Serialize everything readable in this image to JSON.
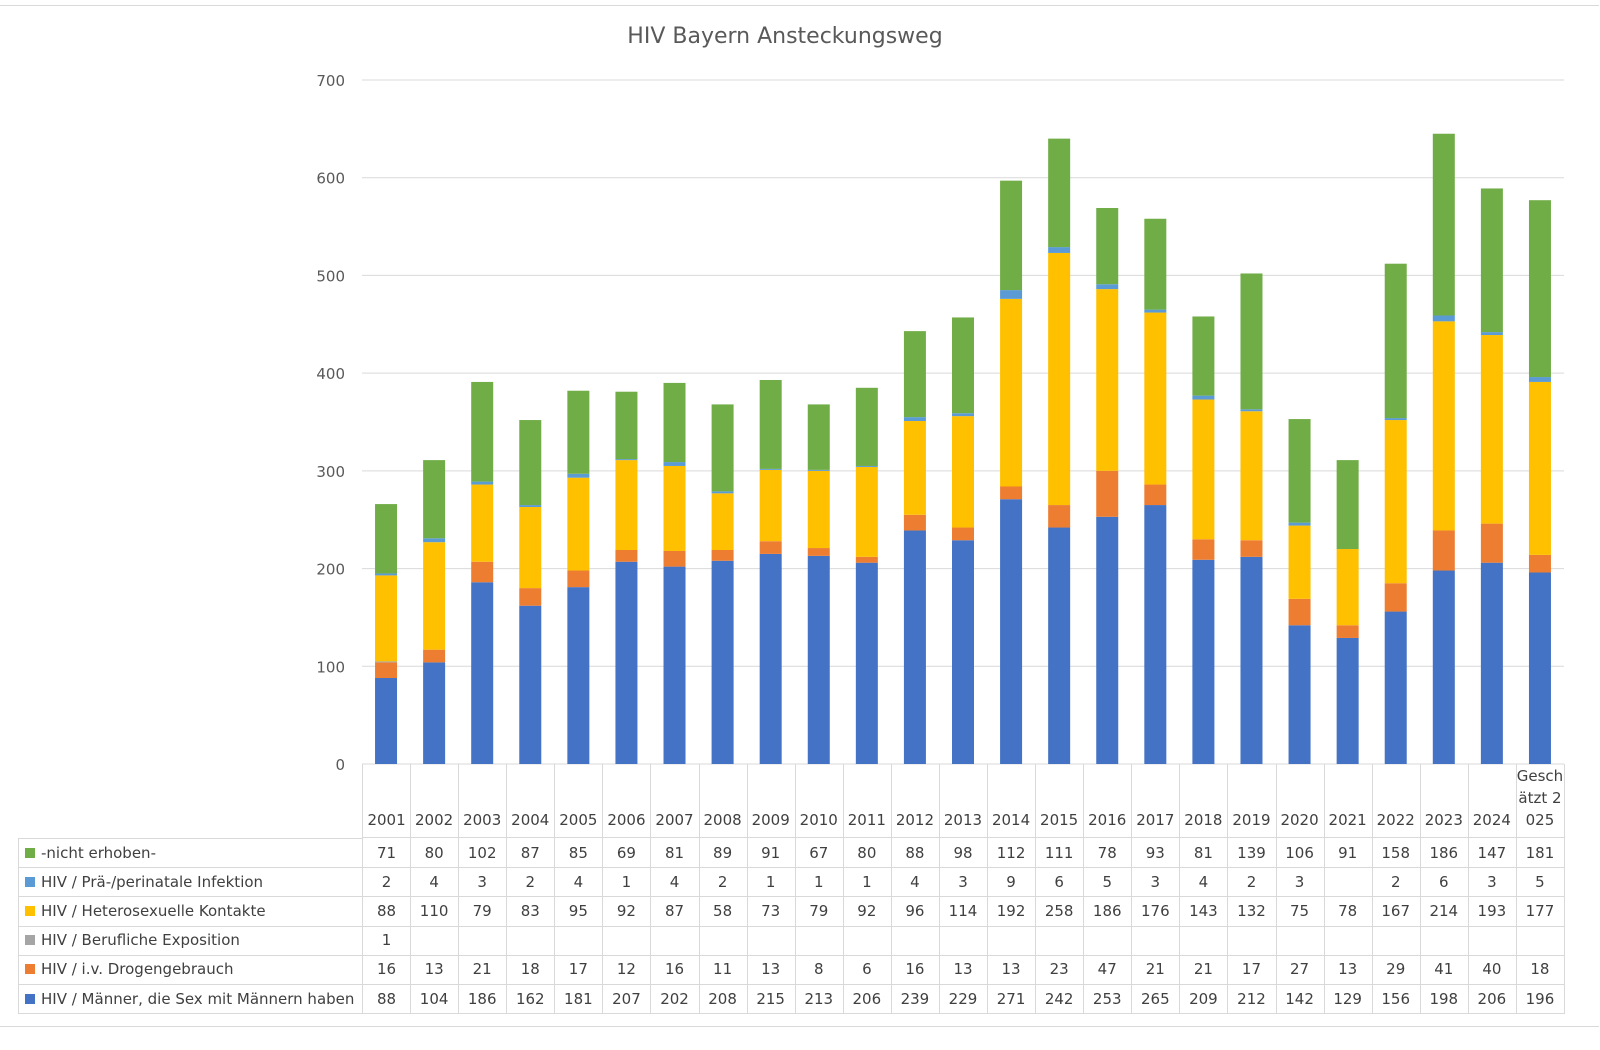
{
  "chart_data": {
    "type": "bar",
    "stacked": true,
    "title": "HIV Bayern Ansteckungsweg",
    "xlabel": "",
    "ylabel": "",
    "ylim": [
      0,
      700
    ],
    "yticks": [
      0,
      100,
      200,
      300,
      400,
      500,
      600,
      700
    ],
    "grid": true,
    "legend": "data-table-bottom",
    "categories": [
      "2001",
      "2002",
      "2003",
      "2004",
      "2005",
      "2006",
      "2007",
      "2008",
      "2009",
      "2010",
      "2011",
      "2012",
      "2013",
      "2014",
      "2015",
      "2016",
      "2017",
      "2018",
      "2019",
      "2020",
      "2021",
      "2022",
      "2023",
      "2024",
      "Geschätzt 2025"
    ],
    "series": [
      {
        "name": "HIV / Männer, die Sex mit Männern haben",
        "color": "#4472C4",
        "values": [
          88,
          104,
          186,
          162,
          181,
          207,
          202,
          208,
          215,
          213,
          206,
          239,
          229,
          271,
          242,
          253,
          265,
          209,
          212,
          142,
          129,
          156,
          198,
          206,
          196
        ]
      },
      {
        "name": "HIV / i.v. Drogengebrauch",
        "color": "#ED7D31",
        "values": [
          16,
          13,
          21,
          18,
          17,
          12,
          16,
          11,
          13,
          8,
          6,
          16,
          13,
          13,
          23,
          47,
          21,
          21,
          17,
          27,
          13,
          29,
          41,
          40,
          18
        ]
      },
      {
        "name": "HIV / Berufliche Exposition",
        "color": "#A5A5A5",
        "values": [
          1,
          null,
          null,
          null,
          null,
          null,
          null,
          null,
          null,
          null,
          null,
          null,
          null,
          null,
          null,
          null,
          null,
          null,
          null,
          null,
          null,
          null,
          null,
          null,
          null
        ]
      },
      {
        "name": "HIV / Heterosexuelle Kontakte",
        "color": "#FFC000",
        "values": [
          88,
          110,
          79,
          83,
          95,
          92,
          87,
          58,
          73,
          79,
          92,
          96,
          114,
          192,
          258,
          186,
          176,
          143,
          132,
          75,
          78,
          167,
          214,
          193,
          177
        ]
      },
      {
        "name": "HIV / Prä-/perinatale Infektion",
        "color": "#5B9BD5",
        "values": [
          2,
          4,
          3,
          2,
          4,
          1,
          4,
          2,
          1,
          1,
          1,
          4,
          3,
          9,
          6,
          5,
          3,
          4,
          2,
          3,
          null,
          2,
          6,
          3,
          5
        ]
      },
      {
        "name": "-nicht erhoben-",
        "color": "#70AD47",
        "values": [
          71,
          80,
          102,
          87,
          85,
          69,
          81,
          89,
          91,
          67,
          80,
          88,
          98,
          112,
          111,
          78,
          93,
          81,
          139,
          106,
          91,
          158,
          186,
          147,
          181
        ]
      }
    ]
  }
}
